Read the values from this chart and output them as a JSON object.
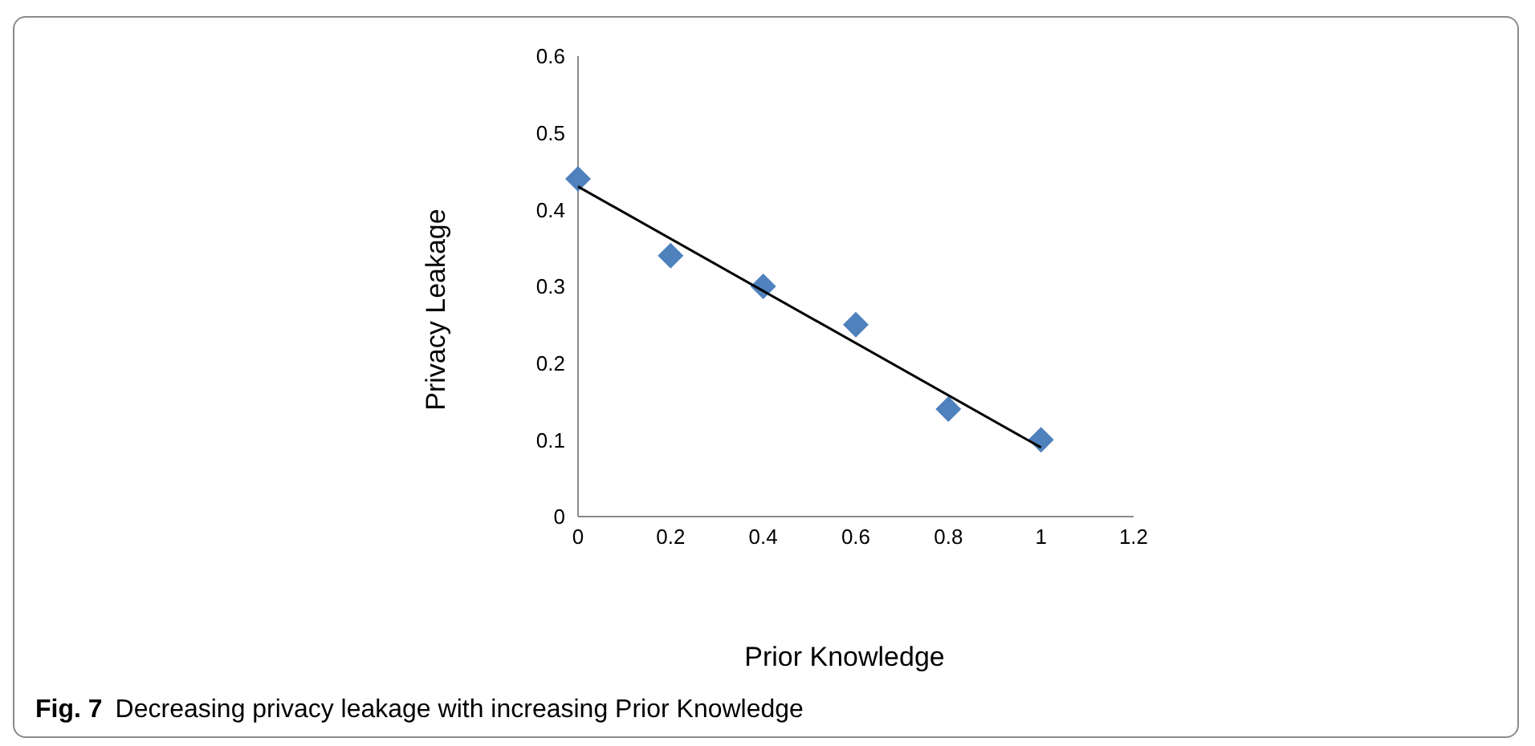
{
  "chart_data": {
    "type": "scatter",
    "xlabel": "Prior Knowledge",
    "ylabel": "Privacy Leakage",
    "annotations": [
      "Fig. 7",
      "Decreasing privacy leakage with increasing Prior Knowledge"
    ],
    "x": [
      0,
      0.2,
      0.4,
      0.6,
      0.8,
      1
    ],
    "series": [
      {
        "color": "#4f81bd",
        "values": [
          0.44,
          0.34,
          0.3,
          0.25,
          0.14,
          0.1
        ],
        "marker": "diamond"
      },
      {
        "type": "line",
        "color": "#000000",
        "x": [
          0,
          1
        ],
        "values": [
          0.43,
          0.09
        ],
        "marker": "none"
      }
    ],
    "xlim": [
      0,
      1.2
    ],
    "xticks": [
      0,
      0.2,
      0.4,
      0.6,
      0.8,
      1,
      1.2
    ],
    "ylim": [
      0,
      0.6
    ],
    "yticks": [
      0,
      0.1,
      0.2,
      0.3,
      0.4,
      0.5,
      0.6
    ],
    "grid": false
  }
}
